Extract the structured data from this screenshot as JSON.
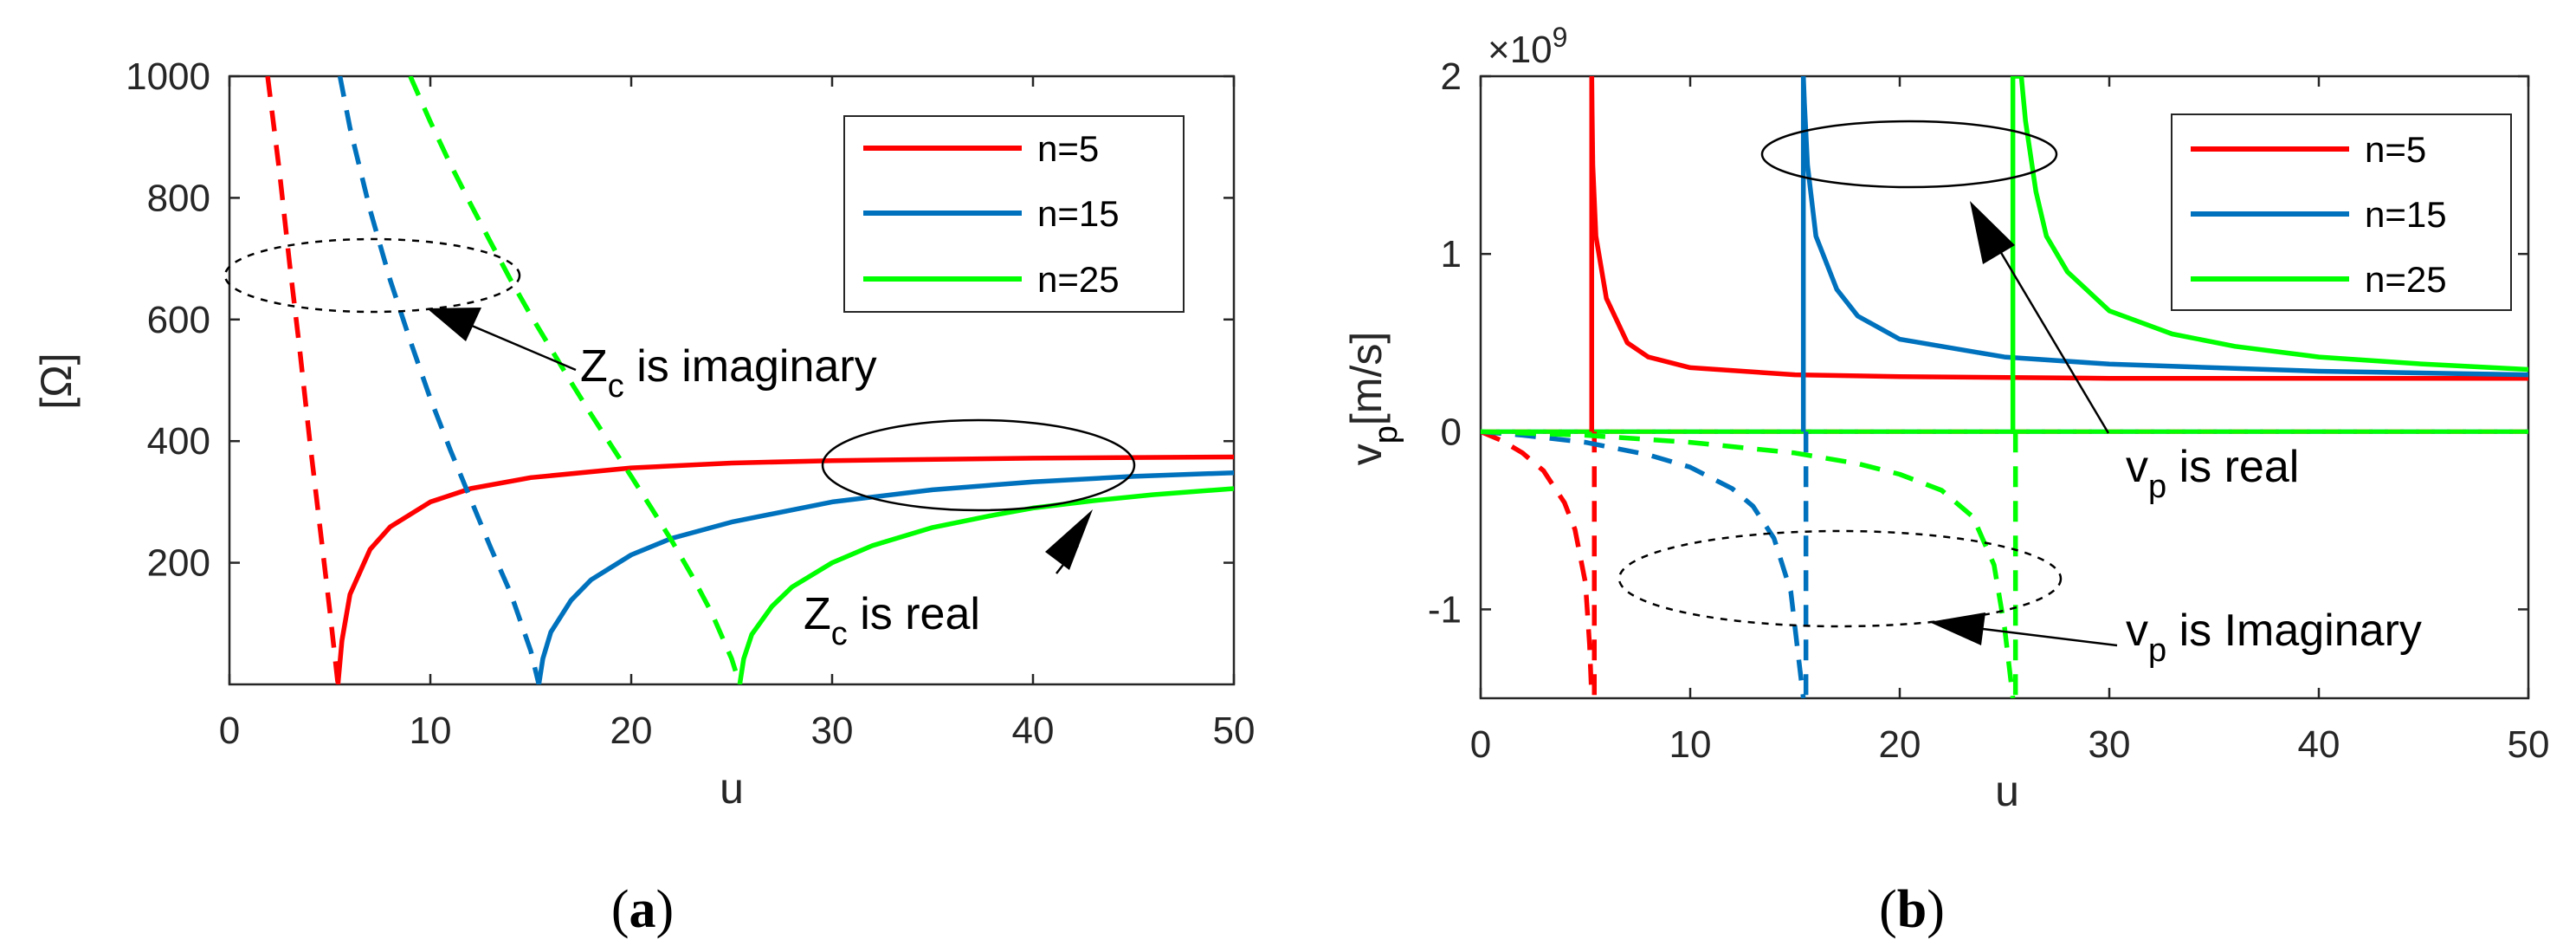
{
  "chart_data": [
    {
      "type": "line",
      "panel": "(a)",
      "caption_letter": "a",
      "xlabel": "u",
      "ylabel": "[Ω]",
      "xlim": [
        0,
        50
      ],
      "ylim": [
        0,
        1000
      ],
      "xticks": [
        0,
        10,
        20,
        30,
        40,
        50
      ],
      "yticks": [
        200,
        400,
        600,
        800,
        1000
      ],
      "legend": [
        "n=5",
        "n=15",
        "n=25"
      ],
      "series": [
        {
          "name": "n=5",
          "color": "#ff0000",
          "n": 5,
          "real_asymptote": 375,
          "real_curve": {
            "style": "solid",
            "x": [
              5.4,
              5.6,
              6,
              7,
              8,
              10,
              12,
              15,
              20,
              25,
              30,
              40,
              50
            ],
            "y": [
              0,
              72,
              148,
              222,
              259,
              300,
              322,
              340,
              356,
              364,
              368,
              372,
              374
            ]
          },
          "imaginary_curve": {
            "style": "dashed",
            "x": [
              1.9,
              2.5,
              3,
              3.5,
              4,
              4.5,
              5,
              5.4
            ],
            "y": [
              1000,
              840,
              690,
              550,
              400,
              260,
              120,
              0
            ]
          }
        },
        {
          "name": "n=15",
          "color": "#0072bd",
          "n": 15,
          "real_asymptote": 360,
          "real_curve": {
            "style": "solid",
            "x": [
              15.4,
              15.6,
              16,
              17,
              18,
              20,
              22,
              25,
              30,
              35,
              40,
              45,
              50
            ],
            "y": [
              0,
              42,
              86,
              138,
              172,
              213,
              240,
              267,
              300,
              320,
              333,
              342,
              348
            ]
          },
          "imaginary_curve": {
            "style": "dashed",
            "x": [
              5.5,
              6,
              7,
              8,
              9,
              10,
              11,
              12,
              13,
              14,
              15,
              15.4
            ],
            "y": [
              1000,
              915,
              780,
              665,
              565,
              470,
              385,
              305,
              225,
              150,
              55,
              0
            ]
          }
        },
        {
          "name": "n=25",
          "color": "#00ff00",
          "n": 25,
          "real_asymptote": 340,
          "real_curve": {
            "style": "solid",
            "x": [
              25.4,
              25.6,
              26,
              27,
              28,
              30,
              32,
              35,
              38,
              40,
              43,
              46,
              50
            ],
            "y": [
              0,
              42,
              82,
              128,
              160,
              200,
              228,
              258,
              278,
              290,
              302,
              312,
              322
            ]
          },
          "imaginary_curve": {
            "style": "dashed",
            "x": [
              9,
              10,
              11,
              12,
              13,
              14,
              15,
              16,
              17,
              18,
              19,
              20,
              21,
              22,
              23,
              24,
              25,
              25.4
            ],
            "y": [
              1000,
              925,
              855,
              790,
              727,
              665,
              607,
              552,
              497,
              444,
              393,
              342,
              290,
              237,
              180,
              118,
              42,
              0
            ]
          }
        }
      ],
      "annotations": [
        {
          "main": "Z",
          "sub": "c",
          "rest": " is imaginary",
          "ellipse": "dashed"
        },
        {
          "main": "Z",
          "sub": "c",
          "rest": " is real",
          "ellipse": "solid"
        }
      ]
    },
    {
      "type": "line",
      "panel": "(b)",
      "caption_letter": "b",
      "xlabel": "u",
      "ylabel_main": "v",
      "ylabel_sub": "p",
      "ylabel_rest": "[m/s]",
      "scale_label": "×10",
      "scale_exponent": "9",
      "xlim": [
        0,
        50
      ],
      "ylim": [
        -1.5,
        2
      ],
      "xticks": [
        0,
        10,
        20,
        30,
        40,
        50
      ],
      "yticks": [
        -1,
        0,
        1,
        2
      ],
      "legend": [
        "n=5",
        "n=15",
        "n=25"
      ],
      "series": [
        {
          "name": "n=5",
          "color": "#ff0000",
          "n": 5,
          "cutoff": 5.3,
          "real_curve": {
            "style": "solid",
            "x": [
              5.3,
              5.32,
              5.35,
              5.5,
              6,
              7,
              8,
              10,
              15,
              20,
              30,
              50
            ],
            "y": [
              2.0,
              1.8,
              1.5,
              1.1,
              0.75,
              0.5,
              0.42,
              0.36,
              0.32,
              0.31,
              0.3,
              0.3
            ]
          },
          "imaginary_curve": {
            "style": "dashed",
            "x": [
              0,
              1,
              2,
              3,
              4,
              4.5,
              5,
              5.2,
              5.3
            ],
            "y": [
              0,
              -0.05,
              -0.12,
              -0.22,
              -0.4,
              -0.55,
              -0.85,
              -1.2,
              -1.5
            ]
          }
        },
        {
          "name": "n=15",
          "color": "#0072bd",
          "n": 15,
          "cutoff": 15.4,
          "real_curve": {
            "style": "solid",
            "x": [
              15.4,
              15.45,
              15.6,
              16,
              17,
              18,
              20,
              25,
              30,
              40,
              50
            ],
            "y": [
              2.0,
              1.85,
              1.5,
              1.1,
              0.8,
              0.65,
              0.52,
              0.42,
              0.38,
              0.34,
              0.32
            ]
          },
          "imaginary_curve": {
            "style": "dashed",
            "x": [
              0,
              2,
              5,
              8,
              10,
              12,
              13,
              14,
              14.8,
              15.2,
              15.4
            ],
            "y": [
              0,
              -0.02,
              -0.06,
              -0.13,
              -0.2,
              -0.32,
              -0.42,
              -0.6,
              -0.9,
              -1.3,
              -1.5
            ]
          }
        },
        {
          "name": "n=25",
          "color": "#00ff00",
          "n": 25,
          "cutoff": 25.4,
          "real_curve": {
            "style": "solid",
            "x": [
              25.4,
              25.8,
              26,
              26.5,
              27,
              28,
              30,
              33,
              36,
              40,
              45,
              50
            ],
            "y": [
              2.0,
              2.0,
              1.75,
              1.35,
              1.1,
              0.9,
              0.68,
              0.55,
              0.48,
              0.42,
              0.38,
              0.35
            ]
          },
          "imaginary_curve": {
            "style": "dashed",
            "x": [
              0,
              5,
              10,
              15,
              18,
              20,
              22,
              23.5,
              24.5,
              25,
              25.4
            ],
            "y": [
              0,
              -0.02,
              -0.06,
              -0.12,
              -0.18,
              -0.24,
              -0.33,
              -0.48,
              -0.75,
              -1.1,
              -1.5
            ]
          }
        }
      ],
      "annotations": [
        {
          "main": "v",
          "sub": "p",
          "rest": " is real",
          "ellipse": "solid"
        },
        {
          "main": "v",
          "sub": "p",
          "rest": " is Imaginary",
          "ellipse": "dashed"
        }
      ]
    }
  ]
}
